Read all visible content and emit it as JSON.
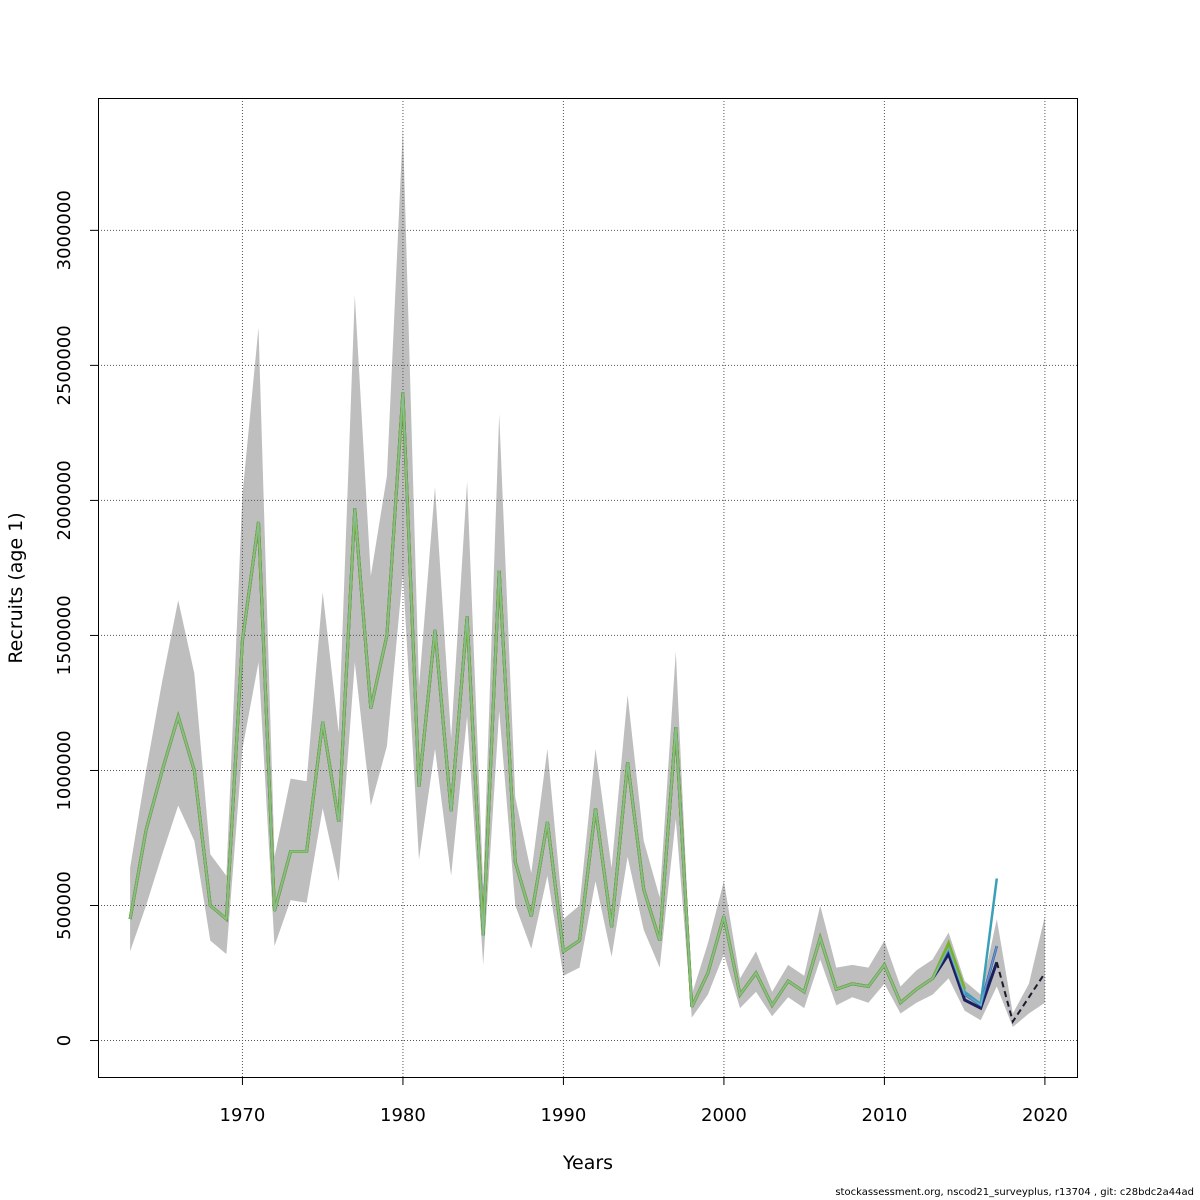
{
  "chart_data": {
    "type": "line",
    "title": "",
    "xlabel": "Years",
    "ylabel": "Recruits (age 1)",
    "xlim": [
      1961,
      2022
    ],
    "ylim": [
      -135000,
      3490000
    ],
    "xticks": [
      1970,
      1980,
      1990,
      2000,
      2010,
      2020
    ],
    "yticks": [
      0,
      500000,
      1000000,
      1500000,
      2000000,
      2500000,
      3000000
    ],
    "grid": true,
    "colors": {
      "band": "#bebebe",
      "main": "#7ab032",
      "retro": [
        "#1b1f5e",
        "#2e4ea0",
        "#3aa0b8",
        "#44b88a"
      ],
      "final_light": "#8ec8e0",
      "final_dark": "#1a1a2e"
    },
    "confidence_band": {
      "x": [
        1963,
        1964,
        1965,
        1966,
        1967,
        1968,
        1969,
        1970,
        1971,
        1972,
        1973,
        1974,
        1975,
        1976,
        1977,
        1978,
        1979,
        1980,
        1981,
        1982,
        1983,
        1984,
        1985,
        1986,
        1987,
        1988,
        1989,
        1990,
        1991,
        1992,
        1993,
        1994,
        1995,
        1996,
        1997,
        1998,
        1999,
        2000,
        2001,
        2002,
        2003,
        2004,
        2005,
        2006,
        2007,
        2008,
        2009,
        2010,
        2011,
        2012,
        2013,
        2014,
        2015,
        2016,
        2017,
        2018,
        2019,
        2020
      ],
      "lower": [
        330000,
        500000,
        690000,
        870000,
        740000,
        370000,
        320000,
        1080000,
        1400000,
        350000,
        520000,
        510000,
        860000,
        590000,
        1400000,
        870000,
        1090000,
        1730000,
        670000,
        1080000,
        610000,
        1200000,
        280000,
        1220000,
        500000,
        340000,
        610000,
        240000,
        270000,
        590000,
        310000,
        680000,
        410000,
        270000,
        820000,
        85000,
        170000,
        320000,
        120000,
        180000,
        90000,
        160000,
        120000,
        300000,
        130000,
        160000,
        140000,
        210000,
        100000,
        140000,
        170000,
        230000,
        110000,
        75000,
        200000,
        50000,
        100000,
        140000
      ],
      "upper": [
        640000,
        1000000,
        1330000,
        1630000,
        1360000,
        690000,
        610000,
        2020000,
        2640000,
        680000,
        970000,
        960000,
        1660000,
        1140000,
        2760000,
        1720000,
        2090000,
        3380000,
        1310000,
        2050000,
        1120000,
        2070000,
        570000,
        2320000,
        900000,
        620000,
        1080000,
        450000,
        500000,
        1080000,
        640000,
        1280000,
        740000,
        530000,
        1440000,
        170000,
        360000,
        590000,
        230000,
        330000,
        180000,
        280000,
        240000,
        500000,
        270000,
        280000,
        270000,
        370000,
        200000,
        260000,
        300000,
        400000,
        220000,
        170000,
        450000,
        100000,
        210000,
        460000
      ]
    },
    "series": [
      {
        "values": [
          450000,
          780000,
          1000000,
          1200000,
          1000000,
          500000,
          450000,
          1480000,
          1920000,
          480000,
          700000,
          700000,
          1180000,
          810000,
          1970000,
          1230000,
          1500000,
          2400000,
          940000,
          1520000,
          850000,
          1570000,
          390000,
          1740000,
          660000,
          460000,
          810000,
          330000,
          370000,
          860000,
          420000,
          1030000,
          560000,
          370000,
          1160000,
          125000,
          250000,
          460000,
          170000,
          250000,
          130000,
          220000,
          180000,
          380000,
          190000,
          210000,
          200000,
          280000,
          140000,
          190000,
          230000,
          320000,
          150000,
          120000,
          290000,
          70000,
          160000,
          250000
        ]
      },
      {
        "values": [
          450000,
          780000,
          1000000,
          1200000,
          1000000,
          500000,
          450000,
          1480000,
          1920000,
          480000,
          700000,
          700000,
          1180000,
          810000,
          1970000,
          1230000,
          1500000,
          2400000,
          940000,
          1520000,
          850000,
          1570000,
          390000,
          1740000,
          660000,
          460000,
          810000,
          330000,
          370000,
          860000,
          420000,
          1030000,
          560000,
          370000,
          1160000,
          125000,
          250000,
          460000,
          170000,
          250000,
          130000,
          220000,
          180000,
          380000,
          190000,
          210000,
          200000,
          280000,
          140000,
          190000,
          230000,
          340000,
          170000,
          130000,
          350000
        ]
      },
      {
        "values": [
          450000,
          780000,
          1000000,
          1200000,
          1000000,
          500000,
          450000,
          1480000,
          1920000,
          480000,
          700000,
          700000,
          1180000,
          810000,
          1970000,
          1230000,
          1500000,
          2400000,
          940000,
          1520000,
          850000,
          1570000,
          390000,
          1740000,
          660000,
          460000,
          810000,
          330000,
          370000,
          860000,
          420000,
          1030000,
          560000,
          370000,
          1160000,
          125000,
          250000,
          460000,
          170000,
          250000,
          130000,
          220000,
          180000,
          380000,
          190000,
          210000,
          200000,
          280000,
          140000,
          190000,
          230000,
          350000,
          180000,
          135000,
          600000
        ]
      },
      {
        "values": [
          450000,
          780000,
          1000000,
          1200000,
          1000000,
          500000,
          450000,
          1480000,
          1920000,
          480000,
          700000,
          700000,
          1180000,
          810000,
          1970000,
          1230000,
          1500000,
          2400000,
          940000,
          1520000,
          850000,
          1570000,
          390000,
          1740000,
          660000,
          460000,
          810000,
          330000,
          370000,
          860000,
          420000,
          1030000,
          560000,
          370000,
          1160000,
          125000,
          250000,
          460000,
          170000,
          250000,
          130000,
          220000,
          180000,
          380000,
          190000,
          210000,
          200000,
          280000,
          140000,
          190000,
          230000,
          360000,
          190000
        ]
      }
    ]
  },
  "footer": "stockassessment.org, nscod21_surveyplus, r13704 , git: c28bdc2a44ad"
}
